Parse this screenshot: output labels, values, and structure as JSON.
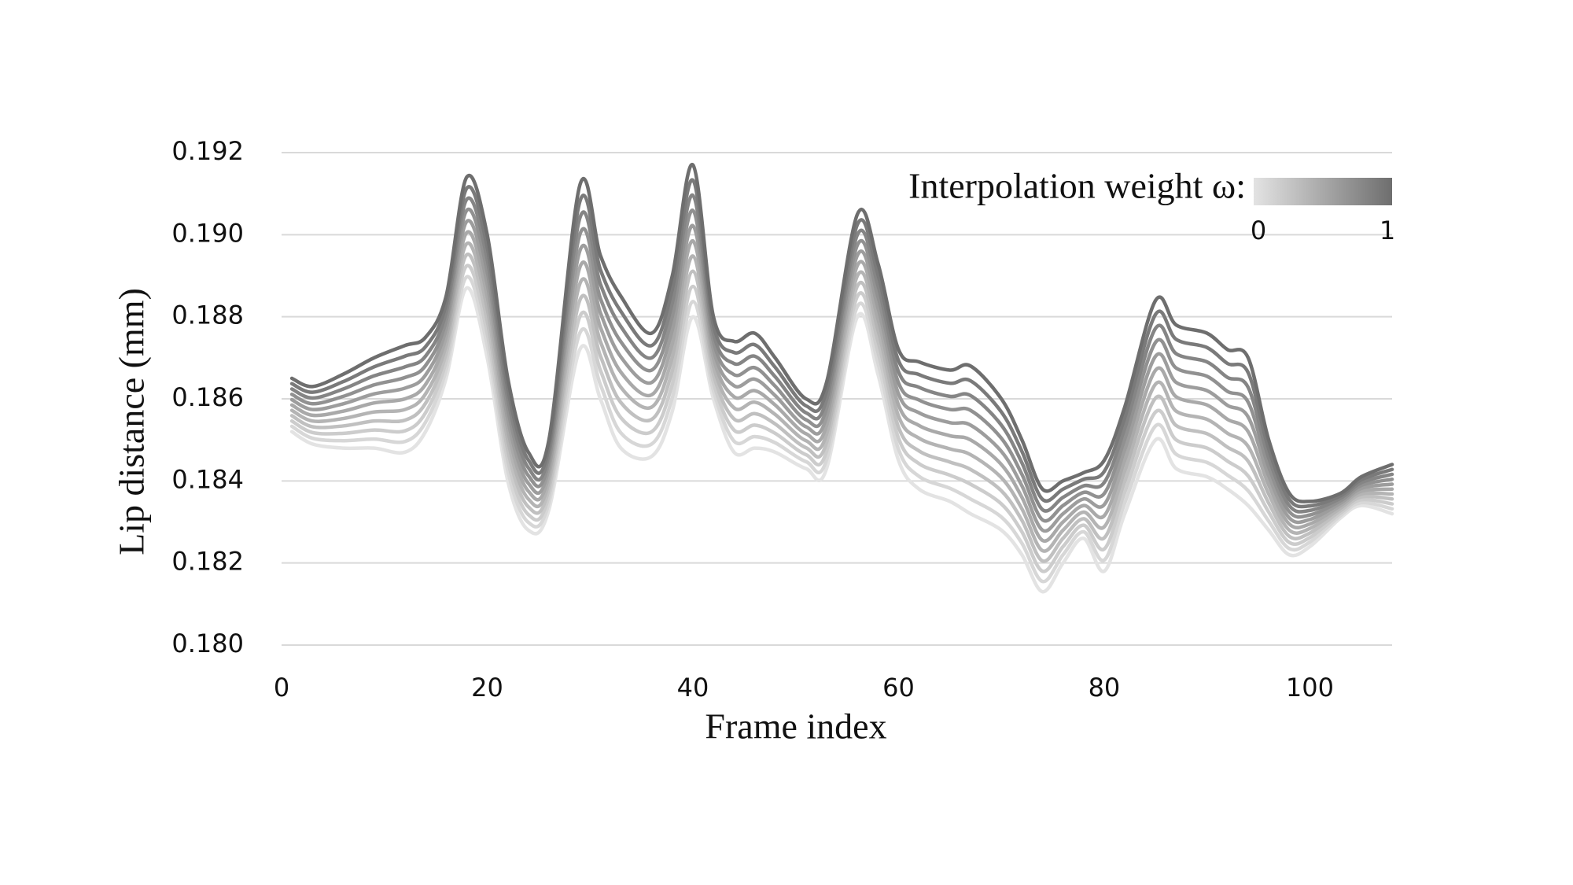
{
  "chart_data": {
    "type": "line",
    "x_label": "Frame index",
    "y_label": "Lip distance (mm)",
    "legend": {
      "title": "Interpolation weight ω:",
      "ticks": [
        0,
        1
      ],
      "colors": [
        "#e3e3e3",
        "#6e6e6e"
      ]
    },
    "xlim": [
      0,
      108
    ],
    "xticks": [
      0,
      20,
      40,
      60,
      80,
      100
    ],
    "ylim": [
      0.18,
      0.192
    ],
    "yticks": [
      {
        "value": 0.18,
        "label": "0.180"
      },
      0.182,
      0.184,
      0.186,
      0.188,
      {
        "value": 0.19,
        "label": "0.190"
      },
      0.192
    ],
    "grid": true,
    "x": [
      1,
      3,
      6,
      9,
      12,
      14,
      16,
      18,
      20,
      22,
      24,
      26,
      29,
      31,
      33,
      36,
      38,
      40,
      42,
      44,
      46,
      48,
      51,
      53,
      56,
      58,
      60,
      62,
      65,
      67,
      70,
      72,
      74,
      76,
      78,
      80,
      82,
      85,
      87,
      90,
      92,
      94,
      96,
      98,
      100,
      103,
      105,
      108
    ],
    "series": [
      {
        "color": "#e3e3e3",
        "values": [
          0.1852,
          0.1849,
          0.1848,
          0.1848,
          0.1847,
          0.1852,
          0.1865,
          0.1887,
          0.187,
          0.184,
          0.1828,
          0.1833,
          0.1872,
          0.186,
          0.1848,
          0.1846,
          0.1857,
          0.188,
          0.186,
          0.1847,
          0.1848,
          0.1847,
          0.1843,
          0.1843,
          0.188,
          0.1866,
          0.1845,
          0.1838,
          0.1835,
          0.1832,
          0.1828,
          0.1822,
          0.1813,
          0.182,
          0.1826,
          0.1818,
          0.1832,
          0.185,
          0.1843,
          0.1841,
          0.1838,
          0.1834,
          0.1828,
          0.1822,
          0.1824,
          0.1831,
          0.1834,
          0.1832
        ]
      },
      {
        "color": "#d7d7d7",
        "values": [
          0.18533,
          0.18504,
          0.18498,
          0.18502,
          0.18496,
          0.18543,
          0.1867,
          0.18897,
          0.1873,
          0.18425,
          0.18299,
          0.18347,
          0.1876,
          0.18635,
          0.18517,
          0.1849,
          0.18603,
          0.18837,
          0.1862,
          0.18497,
          0.18508,
          0.18493,
          0.18447,
          0.18451,
          0.18825,
          0.18687,
          0.18477,
          0.18411,
          0.18382,
          0.18356,
          0.18312,
          0.18248,
          0.18155,
          0.1822,
          0.18276,
          0.18207,
          0.18346,
          0.18534,
          0.18465,
          0.18445,
          0.18414,
          0.18376,
          0.18302,
          0.18235,
          0.18251,
          0.18316,
          0.18347,
          0.18332
        ]
      },
      {
        "color": "#cccccc",
        "values": [
          0.18546,
          0.18518,
          0.18516,
          0.18524,
          0.18522,
          0.18566,
          0.1869,
          0.18924,
          0.1876,
          0.1845,
          0.18318,
          0.18364,
          0.188,
          0.1867,
          0.18554,
          0.1852,
          0.18636,
          0.18874,
          0.1864,
          0.18524,
          0.18536,
          0.18516,
          0.18464,
          0.18472,
          0.1885,
          0.18714,
          0.18504,
          0.18442,
          0.18414,
          0.18392,
          0.18344,
          0.18276,
          0.1818,
          0.1824,
          0.18292,
          0.18234,
          0.18372,
          0.18568,
          0.185,
          0.1848,
          0.18448,
          0.18412,
          0.18324,
          0.1825,
          0.18262,
          0.18322,
          0.18354,
          0.18344
        ]
      },
      {
        "color": "#c0c0c0",
        "values": [
          0.18559,
          0.18532,
          0.18534,
          0.18546,
          0.18548,
          0.18589,
          0.1871,
          0.18951,
          0.1879,
          0.18475,
          0.18337,
          0.18381,
          0.1884,
          0.18705,
          0.18591,
          0.1855,
          0.18669,
          0.18911,
          0.1866,
          0.18551,
          0.18564,
          0.18539,
          0.18481,
          0.18493,
          0.18875,
          0.18741,
          0.18531,
          0.18473,
          0.18446,
          0.18428,
          0.18376,
          0.18304,
          0.18205,
          0.1826,
          0.18308,
          0.18261,
          0.18398,
          0.18602,
          0.18535,
          0.18515,
          0.18482,
          0.18448,
          0.18346,
          0.18265,
          0.18273,
          0.18328,
          0.18361,
          0.18356
        ]
      },
      {
        "color": "#b4b4b4",
        "values": [
          0.18572,
          0.18546,
          0.18552,
          0.18568,
          0.18574,
          0.18612,
          0.1873,
          0.18978,
          0.1882,
          0.185,
          0.18356,
          0.18398,
          0.1888,
          0.1874,
          0.18628,
          0.1858,
          0.18702,
          0.18948,
          0.1868,
          0.18578,
          0.18592,
          0.18562,
          0.18498,
          0.18514,
          0.189,
          0.18768,
          0.18558,
          0.18504,
          0.18478,
          0.18464,
          0.18408,
          0.18332,
          0.1823,
          0.1828,
          0.18324,
          0.18288,
          0.18424,
          0.18636,
          0.1857,
          0.1855,
          0.18516,
          0.18484,
          0.18368,
          0.1828,
          0.18284,
          0.18334,
          0.18368,
          0.18368
        ]
      },
      {
        "color": "#a9a9a9",
        "values": [
          0.18585,
          0.1856,
          0.1857,
          0.1859,
          0.186,
          0.18635,
          0.1875,
          0.19005,
          0.1885,
          0.18525,
          0.18375,
          0.18415,
          0.1892,
          0.18775,
          0.18665,
          0.1861,
          0.18735,
          0.18985,
          0.187,
          0.18605,
          0.1862,
          0.18585,
          0.18515,
          0.18535,
          0.18925,
          0.18795,
          0.18585,
          0.18535,
          0.1851,
          0.185,
          0.1844,
          0.1836,
          0.18255,
          0.183,
          0.1834,
          0.18315,
          0.1845,
          0.1867,
          0.18605,
          0.18585,
          0.1855,
          0.1852,
          0.1839,
          0.18295,
          0.18295,
          0.1834,
          0.18375,
          0.1838
        ]
      },
      {
        "color": "#9d9d9d",
        "values": [
          0.18598,
          0.18574,
          0.18588,
          0.18612,
          0.18626,
          0.18658,
          0.1877,
          0.19032,
          0.1888,
          0.1855,
          0.18394,
          0.18432,
          0.1896,
          0.1881,
          0.18702,
          0.1864,
          0.18768,
          0.19022,
          0.1872,
          0.18632,
          0.18648,
          0.18608,
          0.18532,
          0.18556,
          0.1895,
          0.18822,
          0.18612,
          0.18566,
          0.18542,
          0.18536,
          0.18472,
          0.18388,
          0.1828,
          0.1832,
          0.18356,
          0.18342,
          0.18476,
          0.18704,
          0.1864,
          0.1862,
          0.18584,
          0.18556,
          0.18412,
          0.1831,
          0.18306,
          0.18346,
          0.18382,
          0.18392
        ]
      },
      {
        "color": "#919191",
        "values": [
          0.18611,
          0.18588,
          0.18606,
          0.18634,
          0.18652,
          0.18681,
          0.1879,
          0.19059,
          0.1891,
          0.18575,
          0.18413,
          0.18449,
          0.19,
          0.18845,
          0.18739,
          0.1867,
          0.18801,
          0.19059,
          0.1874,
          0.18659,
          0.18676,
          0.18631,
          0.18549,
          0.18577,
          0.18975,
          0.18849,
          0.18639,
          0.18597,
          0.18574,
          0.18572,
          0.18504,
          0.18416,
          0.18305,
          0.1834,
          0.18372,
          0.18369,
          0.18502,
          0.18738,
          0.18675,
          0.18655,
          0.18618,
          0.18592,
          0.18434,
          0.18325,
          0.18317,
          0.18352,
          0.18389,
          0.18404
        ]
      },
      {
        "color": "#858585",
        "values": [
          0.18624,
          0.18602,
          0.18624,
          0.18656,
          0.18678,
          0.18704,
          0.1881,
          0.19086,
          0.1894,
          0.186,
          0.18432,
          0.18466,
          0.1904,
          0.1888,
          0.18776,
          0.187,
          0.18834,
          0.19096,
          0.1876,
          0.18686,
          0.18704,
          0.18654,
          0.18566,
          0.18598,
          0.19,
          0.18876,
          0.18666,
          0.18628,
          0.18606,
          0.18608,
          0.18536,
          0.18444,
          0.1833,
          0.1836,
          0.18388,
          0.18396,
          0.18528,
          0.18772,
          0.1871,
          0.1869,
          0.18652,
          0.18628,
          0.18456,
          0.1834,
          0.18328,
          0.18358,
          0.18396,
          0.18416
        ]
      },
      {
        "color": "#7a7a7a",
        "values": [
          0.18637,
          0.18616,
          0.18642,
          0.18678,
          0.18704,
          0.18727,
          0.1883,
          0.19113,
          0.1897,
          0.18625,
          0.18451,
          0.18483,
          0.1908,
          0.18915,
          0.18813,
          0.1873,
          0.18867,
          0.19133,
          0.1878,
          0.18713,
          0.18732,
          0.18677,
          0.18583,
          0.18619,
          0.19025,
          0.18903,
          0.18693,
          0.18659,
          0.18638,
          0.18644,
          0.18568,
          0.18472,
          0.18355,
          0.1838,
          0.18404,
          0.18423,
          0.18554,
          0.18806,
          0.18745,
          0.18725,
          0.18686,
          0.18664,
          0.18478,
          0.18355,
          0.18339,
          0.18364,
          0.18403,
          0.18428
        ]
      },
      {
        "color": "#6e6e6e",
        "values": [
          0.1865,
          0.1863,
          0.1866,
          0.187,
          0.1873,
          0.1875,
          0.1885,
          0.1914,
          0.19,
          0.1865,
          0.1847,
          0.185,
          0.1912,
          0.1895,
          0.1885,
          0.1876,
          0.189,
          0.1917,
          0.188,
          0.1874,
          0.1876,
          0.187,
          0.186,
          0.1864,
          0.1905,
          0.1893,
          0.1872,
          0.1869,
          0.1867,
          0.1868,
          0.186,
          0.185,
          0.1838,
          0.184,
          0.1842,
          0.1845,
          0.1858,
          0.1884,
          0.1878,
          0.1876,
          0.1872,
          0.187,
          0.185,
          0.1837,
          0.1835,
          0.1837,
          0.1841,
          0.1844
        ]
      }
    ]
  }
}
